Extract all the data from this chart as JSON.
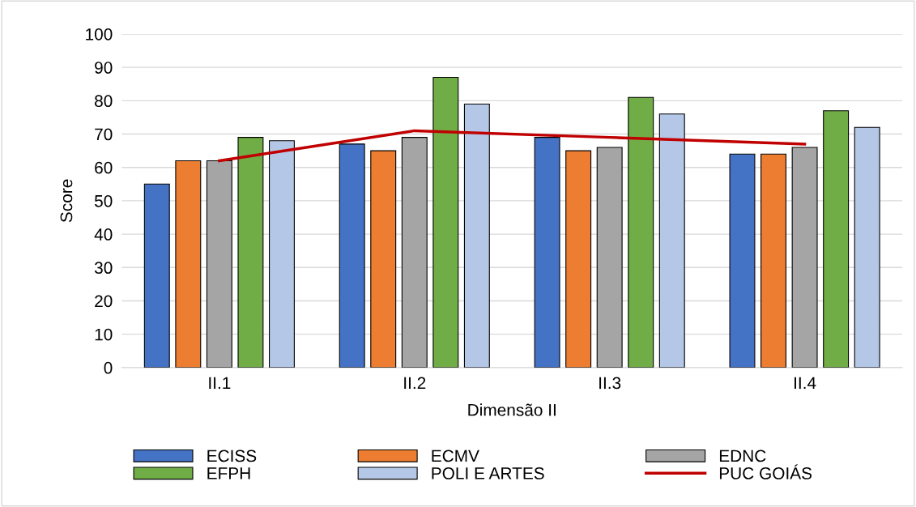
{
  "chart_data": {
    "type": "bar",
    "xlabel": "Dimensão II",
    "ylabel": "Score",
    "categories": [
      "II.1",
      "II.2",
      "II.3",
      "II.4"
    ],
    "series": [
      {
        "name": "ECISS",
        "color": "#4472c4",
        "values": [
          55,
          67,
          69,
          64
        ]
      },
      {
        "name": "ECMV",
        "color": "#ed7d31",
        "values": [
          62,
          65,
          65,
          64
        ]
      },
      {
        "name": "EDNC",
        "color": "#a5a5a5",
        "values": [
          62,
          69,
          66,
          66
        ]
      },
      {
        "name": "EFPH",
        "color": "#70ad47",
        "values": [
          69,
          87,
          81,
          77
        ]
      },
      {
        "name": "POLI E ARTES",
        "color": "#b4c7e7",
        "values": [
          68,
          79,
          76,
          72
        ]
      },
      {
        "name": "PUC GOIÁS",
        "type": "line",
        "color": "#c00000",
        "values": [
          62,
          71,
          69,
          67
        ]
      }
    ],
    "ylim": [
      0,
      100
    ],
    "yticks": [
      0,
      10,
      20,
      30,
      40,
      50,
      60,
      70,
      80,
      90,
      100
    ],
    "grid": "y",
    "legend": "bottom"
  }
}
